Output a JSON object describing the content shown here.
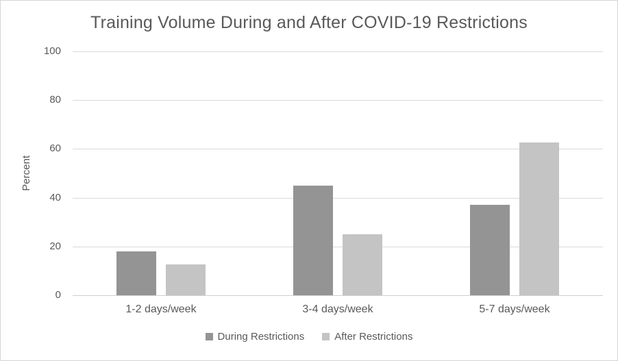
{
  "chart_data": {
    "type": "bar",
    "title": "Training Volume During and After COVID-19 Restrictions",
    "xlabel": "",
    "ylabel": "Percent",
    "categories": [
      "1-2 days/week",
      "3-4 days/week",
      "5-7 days/week"
    ],
    "series": [
      {
        "name": "During Restrictions",
        "values": [
          18,
          45,
          37
        ],
        "color": "#949494"
      },
      {
        "name": "After Restrictions",
        "values": [
          12.5,
          25,
          62.5
        ],
        "color": "#c4c4c4"
      }
    ],
    "ylim": [
      0,
      100
    ],
    "yticks": [
      0,
      20,
      40,
      60,
      80,
      100
    ],
    "grid": "horizontal",
    "legend_position": "bottom",
    "colors": {
      "gridline": "#d9d9d9",
      "axis_line": "#cfcfcf",
      "text": "#595959",
      "background": "#ffffff",
      "frame_border": "#d5d5d5"
    }
  }
}
